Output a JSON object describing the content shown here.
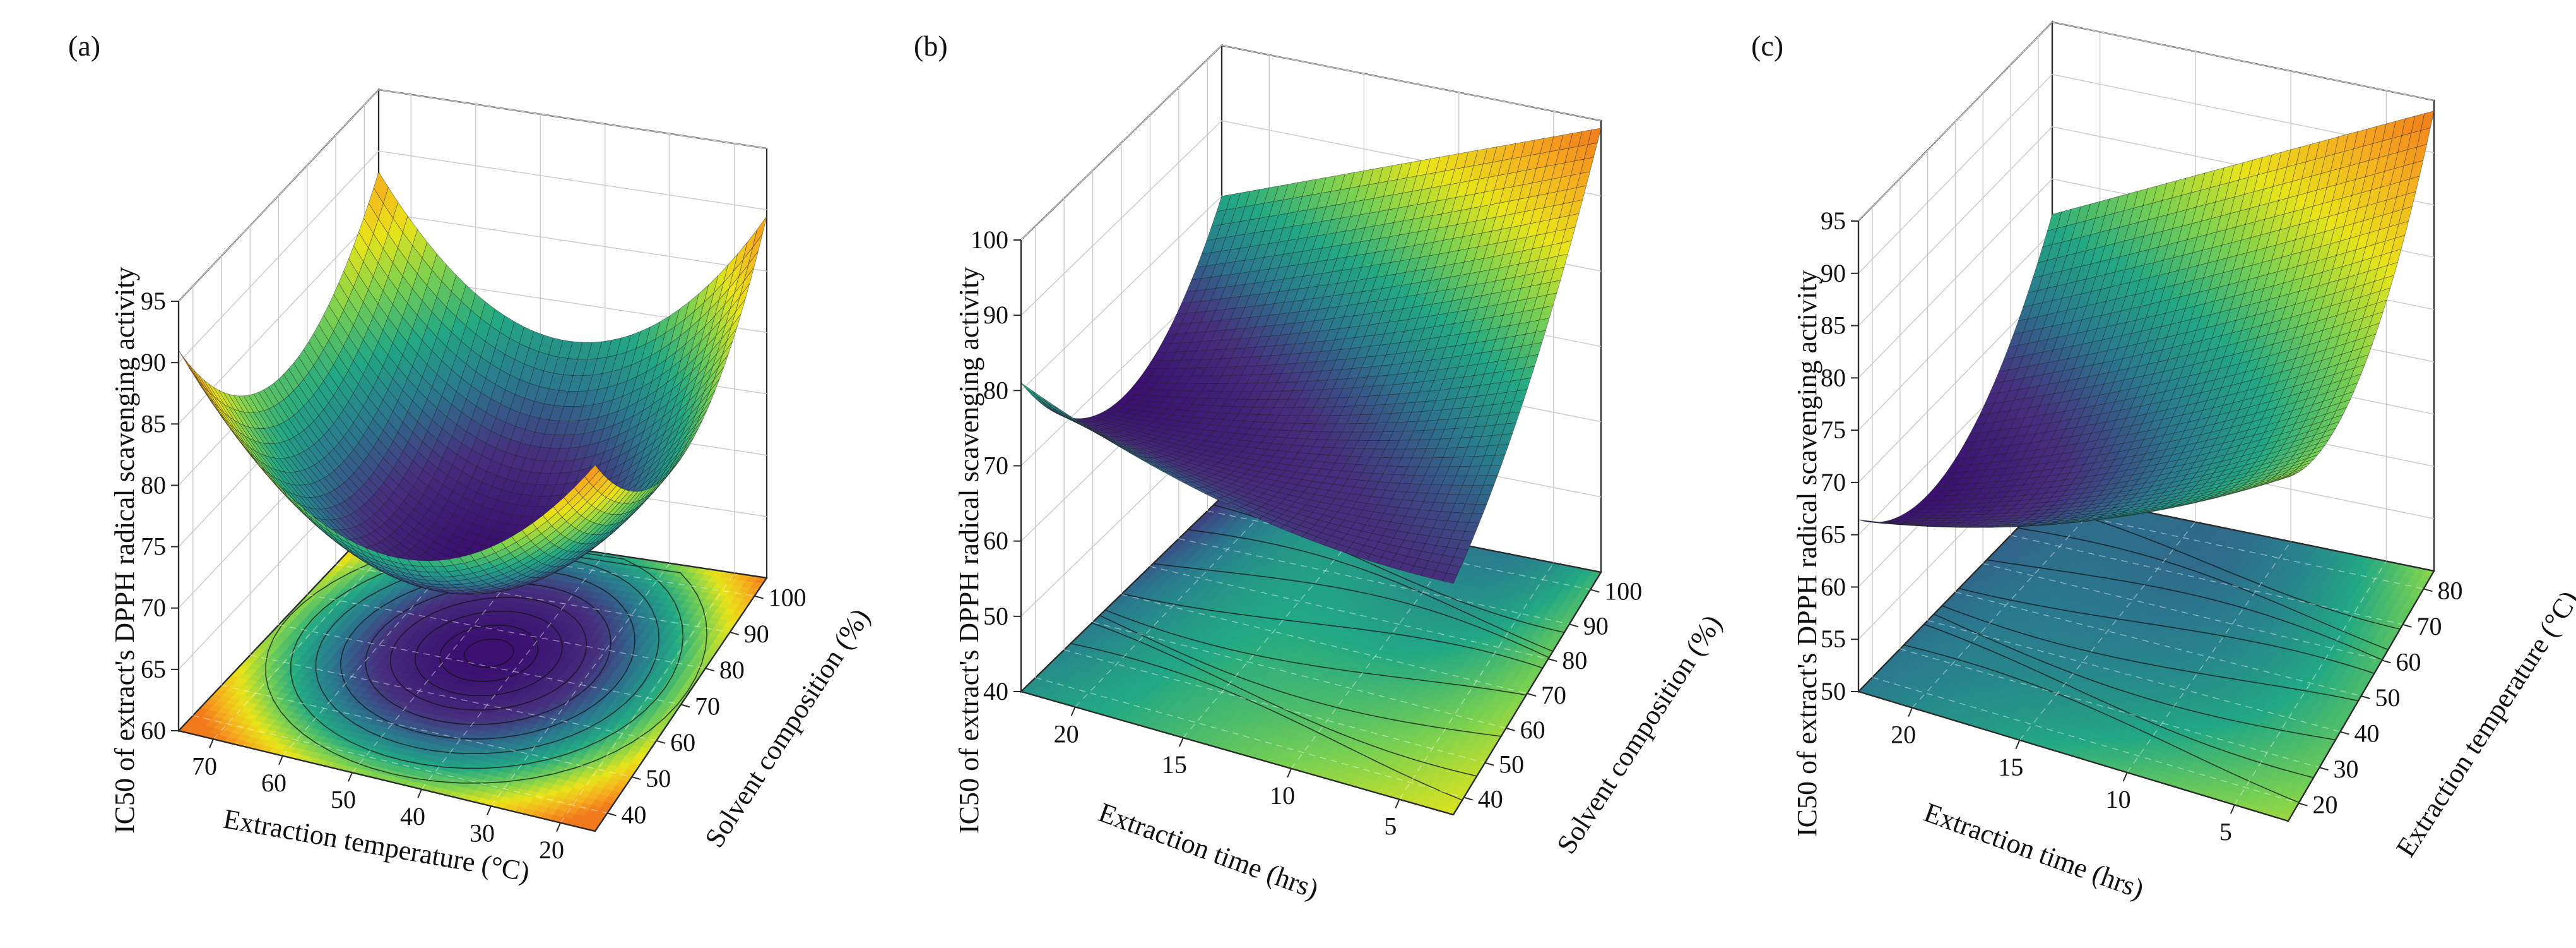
{
  "chart_data": [
    {
      "type": "surface",
      "panel": "(a)",
      "zlabel": "IC50 of extract's DPPH radical scavenging  activity",
      "xlabel": "Extraction temperature (°C)",
      "ylabel": "Solvent composition (%)",
      "x_ticks": [
        "70",
        "60",
        "50",
        "40",
        "30",
        "20"
      ],
      "y_ticks": [
        "40",
        "50",
        "60",
        "70",
        "80",
        "90",
        "100"
      ],
      "z_ticks": [
        "60",
        "65",
        "70",
        "75",
        "80",
        "85",
        "90",
        "95"
      ],
      "xlim": [
        78,
        20
      ],
      "ylim": [
        37,
        100
      ],
      "zlim": [
        60,
        95
      ],
      "z_max_observed": 91,
      "z_min_observed": 68,
      "model": "quadratic bowl, minimum near temperature 45 °C and solvent 70 %",
      "colormap": [
        "#3b0f70",
        "#46307e",
        "#2a788e",
        "#22a884",
        "#7ad151",
        "#e8e419",
        "#f5b01f",
        "#f07a1c"
      ]
    },
    {
      "type": "surface",
      "panel": "(b)",
      "zlabel": "IC50 of extract's DPPH radical scavenging activity",
      "xlabel": "Extraction time (hrs)",
      "ylabel": "Solvent composition (%)",
      "x_ticks": [
        "20",
        "15",
        "10",
        "5"
      ],
      "y_ticks": [
        "40",
        "50",
        "60",
        "70",
        "80",
        "90",
        "100"
      ],
      "z_ticks": [
        "40",
        "50",
        "60",
        "70",
        "80",
        "90",
        "100"
      ],
      "xlim": [
        24,
        1
      ],
      "ylim": [
        37,
        100
      ],
      "zlim": [
        40,
        100
      ],
      "z_max_observed": 99,
      "z_min_observed": 66,
      "model": "saddle-shaped surface, low along long extraction times, high at short time and high solvent",
      "colormap": [
        "#3b0f70",
        "#46307e",
        "#2a788e",
        "#22a884",
        "#7ad151",
        "#e8e419",
        "#f5b01f",
        "#f07a1c"
      ]
    },
    {
      "type": "surface",
      "panel": "(c)",
      "zlabel": "IC50 of extract's DPPH radical scavenging activity",
      "xlabel": "Extraction time (hrs)",
      "ylabel": "Extraction temperature (°C)",
      "x_ticks": [
        "20",
        "15",
        "10",
        "5"
      ],
      "y_ticks": [
        "20",
        "30",
        "40",
        "50",
        "60",
        "70",
        "80"
      ],
      "z_ticks": [
        "50",
        "55",
        "60",
        "65",
        "70",
        "75",
        "80",
        "85",
        "90",
        "95"
      ],
      "xlim": [
        24,
        1
      ],
      "ylim": [
        18,
        80
      ],
      "zlim": [
        50,
        95
      ],
      "z_max_observed": 94,
      "z_min_observed": 62,
      "model": "saddle-shaped surface, minimum at long time and mid temperature, maximum at short time and high temperature",
      "colormap": [
        "#3b0f70",
        "#46307e",
        "#2a788e",
        "#22a884",
        "#7ad151",
        "#e8e419",
        "#f5b01f",
        "#f07a1c"
      ]
    }
  ]
}
